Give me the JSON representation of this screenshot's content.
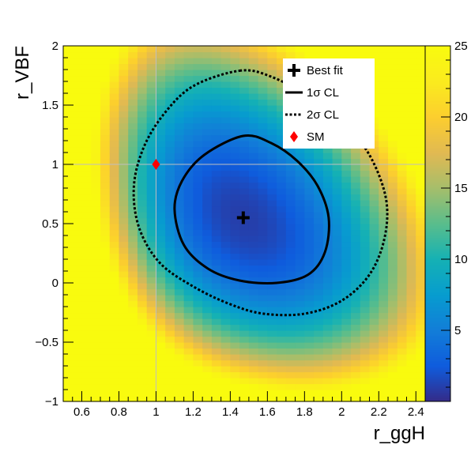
{
  "chart_data": {
    "type": "heatmap",
    "title": "",
    "xlabel": "r_ggH",
    "ylabel": "r_VBF",
    "xlim": [
      0.5,
      2.45
    ],
    "ylim": [
      -1,
      2
    ],
    "zlim": [
      0,
      25
    ],
    "x_ticks": [
      0.6,
      0.8,
      1,
      1.2,
      1.4,
      1.6,
      1.8,
      2,
      2.2,
      2.4
    ],
    "x_tick_labels": [
      "0.6",
      "0.8",
      "1",
      "1.2",
      "1.4",
      "1.6",
      "1.8",
      "2",
      "2.2",
      "2.4"
    ],
    "y_ticks": [
      -1,
      -0.5,
      0,
      0.5,
      1,
      1.5,
      2
    ],
    "y_tick_labels": [
      "−1",
      "−0.5",
      "0",
      "0.5",
      "1",
      "1.5",
      "2"
    ],
    "z_ticks": [
      5,
      10,
      15,
      20,
      25
    ],
    "z_tick_labels": [
      "5",
      "10",
      "15",
      "20",
      "25"
    ],
    "colormap": "parula",
    "best_fit": {
      "x": 1.47,
      "y": 0.55
    },
    "sm_point": {
      "x": 1.0,
      "y": 1.0
    },
    "reference_lines": {
      "x": 1.0,
      "y": 1.0
    },
    "contours": [
      {
        "name": "1sigma",
        "points": [
          [
            1.47,
            1.24
          ],
          [
            1.62,
            1.18
          ],
          [
            1.76,
            1.03
          ],
          [
            1.87,
            0.82
          ],
          [
            1.93,
            0.55
          ],
          [
            1.91,
            0.26
          ],
          [
            1.82,
            0.07
          ],
          [
            1.65,
            0.0
          ],
          [
            1.45,
            0.02
          ],
          [
            1.28,
            0.12
          ],
          [
            1.15,
            0.32
          ],
          [
            1.1,
            0.62
          ],
          [
            1.14,
            0.86
          ],
          [
            1.26,
            1.08
          ]
        ]
      },
      {
        "name": "2sigma",
        "points": [
          [
            1.45,
            1.79
          ],
          [
            1.62,
            1.74
          ],
          [
            1.85,
            1.55
          ],
          [
            2.03,
            1.32
          ],
          [
            2.16,
            1.05
          ],
          [
            2.24,
            0.7
          ],
          [
            2.23,
            0.37
          ],
          [
            2.15,
            0.07
          ],
          [
            2.0,
            -0.15
          ],
          [
            1.8,
            -0.26
          ],
          [
            1.58,
            -0.26
          ],
          [
            1.4,
            -0.18
          ],
          [
            1.2,
            -0.03
          ],
          [
            1.02,
            0.17
          ],
          [
            0.91,
            0.46
          ],
          [
            0.88,
            0.8
          ],
          [
            0.93,
            1.13
          ],
          [
            1.04,
            1.42
          ],
          [
            1.2,
            1.66
          ]
        ]
      }
    ],
    "legend": {
      "position": "top-right",
      "entries": [
        {
          "marker": "cross",
          "label": "Best fit"
        },
        {
          "marker": "solid-line",
          "label": "1σ CL"
        },
        {
          "marker": "dotted-line",
          "label": "2σ CL"
        },
        {
          "marker": "red-diamond",
          "label": "SM"
        }
      ]
    },
    "colors": {
      "sm_marker": "#ff0000",
      "reference_line": "#bfbfbf",
      "contour": "#000000"
    }
  }
}
